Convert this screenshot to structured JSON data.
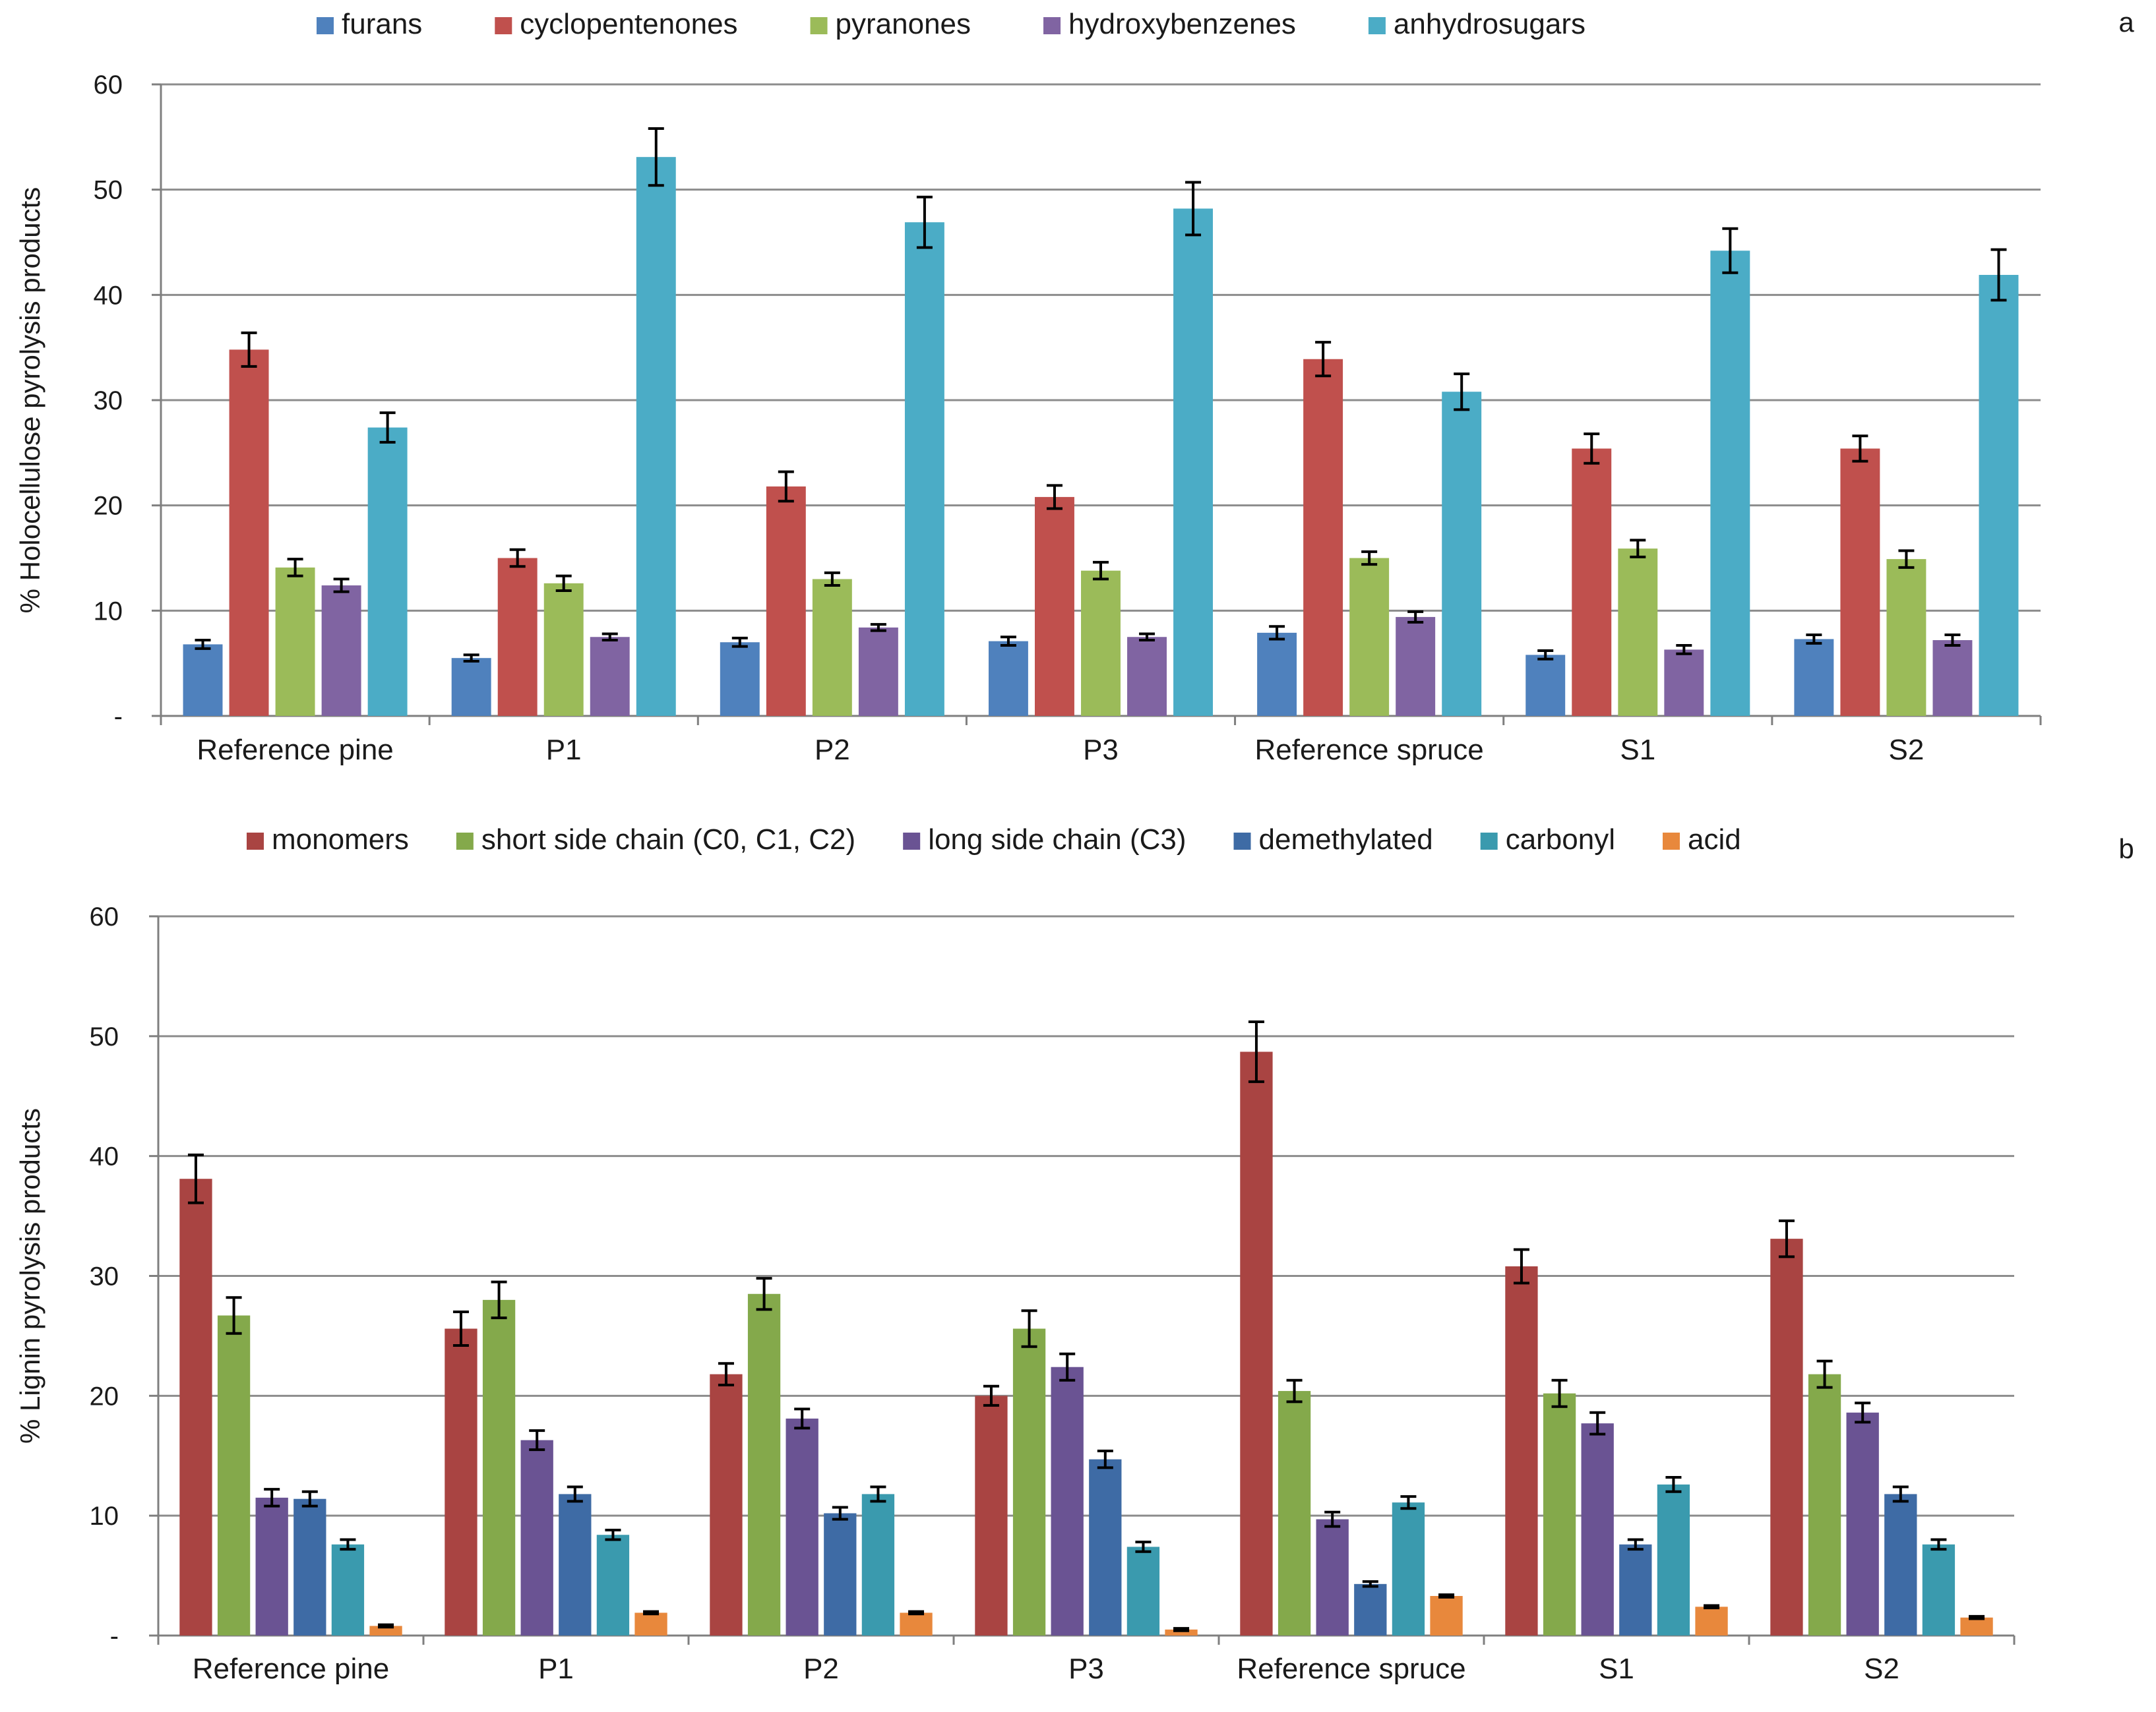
{
  "chart_data": [
    {
      "type": "bar",
      "panel_label": "a",
      "title": "",
      "xlabel": "",
      "ylabel": "% Holocellulose pyrolysis products",
      "ylim": [
        0,
        60
      ],
      "yticks": [
        "-",
        "10",
        "20",
        "30",
        "40",
        "50",
        "60"
      ],
      "grid": true,
      "legend_position": "top",
      "error_bars": true,
      "categories": [
        "Reference pine",
        "P1",
        "P2",
        "P3",
        "Reference spruce",
        "S1",
        "S2"
      ],
      "series": [
        {
          "name": "furans",
          "color": "#4f81bd",
          "values": [
            6.8,
            5.5,
            7.0,
            7.1,
            7.9,
            5.8,
            7.3
          ],
          "errors": [
            0.4,
            0.3,
            0.4,
            0.4,
            0.6,
            0.4,
            0.4
          ]
        },
        {
          "name": "cyclopentenones",
          "color": "#c0504d",
          "values": [
            34.8,
            15.0,
            21.8,
            20.8,
            33.9,
            25.4,
            25.4
          ],
          "errors": [
            1.6,
            0.8,
            1.4,
            1.1,
            1.6,
            1.4,
            1.2
          ]
        },
        {
          "name": "pyranones",
          "color": "#9bbb59",
          "values": [
            14.1,
            12.6,
            13.0,
            13.8,
            15.0,
            15.9,
            14.9
          ],
          "errors": [
            0.8,
            0.7,
            0.6,
            0.8,
            0.6,
            0.8,
            0.8
          ]
        },
        {
          "name": "hydroxybenzenes",
          "color": "#8064a2",
          "values": [
            12.4,
            7.5,
            8.4,
            7.5,
            9.4,
            6.3,
            7.2
          ],
          "errors": [
            0.6,
            0.3,
            0.3,
            0.3,
            0.5,
            0.4,
            0.5
          ]
        },
        {
          "name": "anhydrosugars",
          "color": "#4bacc6",
          "values": [
            27.4,
            53.1,
            46.9,
            48.2,
            30.8,
            44.2,
            41.9
          ],
          "errors": [
            1.4,
            2.7,
            2.4,
            2.5,
            1.7,
            2.1,
            2.4
          ]
        }
      ]
    },
    {
      "type": "bar",
      "panel_label": "b",
      "title": "",
      "xlabel": "",
      "ylabel": "% Lignin pyrolysis products",
      "ylim": [
        0,
        60
      ],
      "yticks": [
        "-",
        "10",
        "20",
        "30",
        "40",
        "50",
        "60"
      ],
      "grid": true,
      "legend_position": "top",
      "error_bars": true,
      "categories": [
        "Reference pine",
        "P1",
        "P2",
        "P3",
        "Reference spruce",
        "S1",
        "S2"
      ],
      "series": [
        {
          "name": "monomers",
          "color": "#a94442",
          "values": [
            38.1,
            25.6,
            21.8,
            20.0,
            48.7,
            30.8,
            33.1
          ],
          "errors": [
            2.0,
            1.4,
            0.9,
            0.8,
            2.5,
            1.4,
            1.5
          ]
        },
        {
          "name": "short side chain (C0, C1, C2)",
          "color": "#84a94b",
          "values": [
            26.7,
            28.0,
            28.5,
            25.6,
            20.4,
            20.2,
            21.8
          ],
          "errors": [
            1.5,
            1.5,
            1.3,
            1.5,
            0.9,
            1.1,
            1.1
          ]
        },
        {
          "name": "long side chain (C3)",
          "color": "#6a5393",
          "values": [
            11.5,
            16.3,
            18.1,
            22.4,
            9.7,
            17.7,
            18.6
          ],
          "errors": [
            0.7,
            0.8,
            0.8,
            1.1,
            0.6,
            0.9,
            0.8
          ]
        },
        {
          "name": "demethylated",
          "color": "#3e6ba5",
          "values": [
            11.4,
            11.8,
            10.2,
            14.7,
            4.3,
            7.6,
            11.8
          ],
          "errors": [
            0.6,
            0.6,
            0.5,
            0.7,
            0.2,
            0.4,
            0.6
          ]
        },
        {
          "name": "carbonyl",
          "color": "#3a9aae",
          "values": [
            7.6,
            8.4,
            11.8,
            7.4,
            11.1,
            12.6,
            7.6
          ],
          "errors": [
            0.4,
            0.4,
            0.6,
            0.4,
            0.5,
            0.6,
            0.4
          ]
        },
        {
          "name": "acid",
          "color": "#e8883c",
          "values": [
            0.8,
            1.9,
            1.9,
            0.5,
            3.3,
            2.4,
            1.5
          ],
          "errors": [
            0.1,
            0.1,
            0.1,
            0.1,
            0.1,
            0.1,
            0.1
          ]
        }
      ]
    }
  ]
}
